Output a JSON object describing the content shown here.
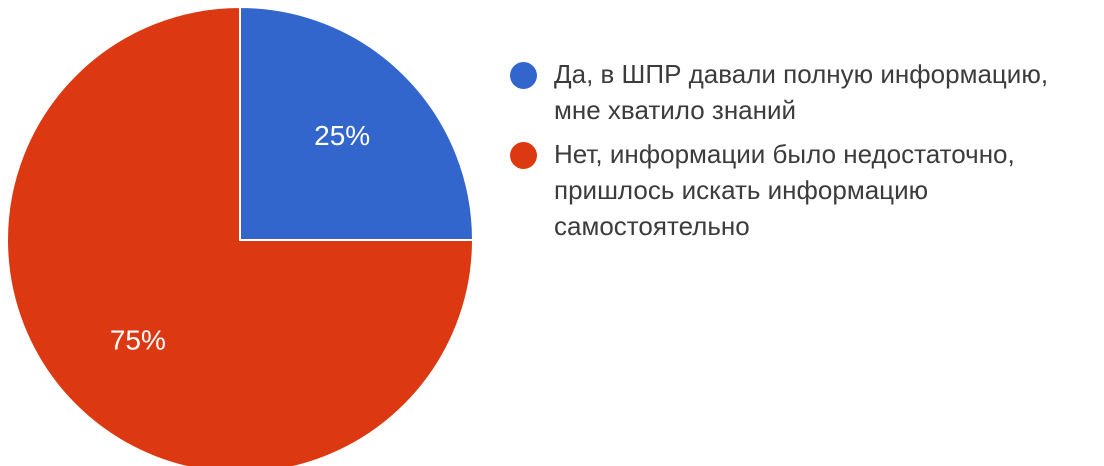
{
  "chart_data": {
    "type": "pie",
    "title": "",
    "slices": [
      {
        "label": "Да, в ШПР давали полную информацию, мне хватило знаний",
        "value": 25,
        "display": "25%",
        "color": "#3366cc"
      },
      {
        "label": "Нет, информации было недостаточно, пришлось искать информацию самостоятельно",
        "value": 75,
        "display": "75%",
        "color": "#dc3912"
      }
    ],
    "legend_position": "right"
  }
}
